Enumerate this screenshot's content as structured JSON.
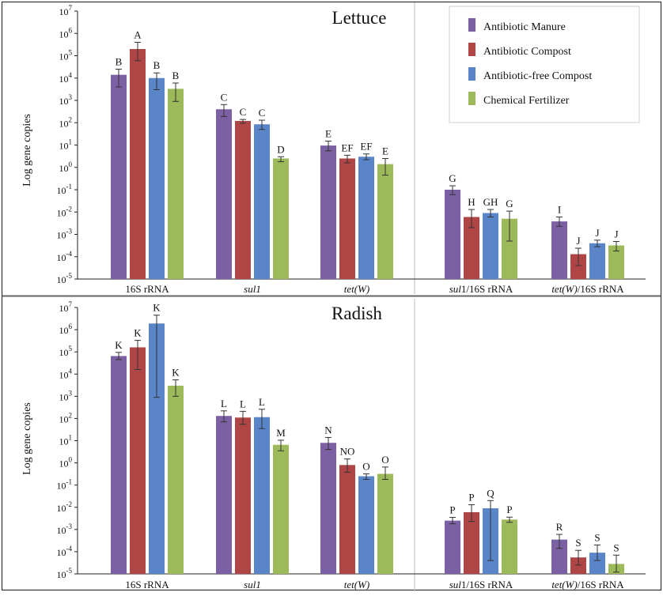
{
  "chart_data": {
    "type": "bar",
    "yscale": "log",
    "ylabel": "Log gene copies",
    "y_exponent_range": [
      -5,
      7
    ],
    "y_tick_base": "10",
    "legend": [
      {
        "name": "Antibiotic Manure",
        "color": "#7B61A3"
      },
      {
        "name": "Antibiotic Compost",
        "color": "#B04545"
      },
      {
        "name": "Antibiotic-free Compost",
        "color": "#5A86C9"
      },
      {
        "name": "Chemical Fertilizer",
        "color": "#9DBA5A"
      }
    ],
    "panels": [
      {
        "title": "Lettuce",
        "groups": [
          {
            "label": "16S rRNA",
            "label_parts": [
              {
                "text": "16S rRNA",
                "italic": false
              }
            ],
            "values": [
              14000,
              200000,
              10000,
              3300
            ],
            "err_low": [
              4000,
              60000,
              3000,
              900
            ],
            "err_high": [
              25000,
              400000,
              17000,
              6000
            ],
            "letters": [
              "B",
              "A",
              "B",
              "B"
            ]
          },
          {
            "label": "sul1",
            "label_parts": [
              {
                "text": "sul1",
                "italic": true
              }
            ],
            "values": [
              400,
              120,
              85,
              2.5
            ],
            "err_low": [
              190,
              95,
              50,
              1.8
            ],
            "err_high": [
              650,
              140,
              130,
              3.0
            ],
            "letters": [
              "C",
              "C",
              "C",
              "D"
            ]
          },
          {
            "label": "tet(W)",
            "label_parts": [
              {
                "text": "tet(W)",
                "italic": true
              }
            ],
            "values": [
              9.5,
              2.5,
              3.0,
              1.4
            ],
            "err_low": [
              5.5,
              1.6,
              2.2,
              0.45
            ],
            "err_high": [
              15,
              3.5,
              4.0,
              2.5
            ],
            "letters": [
              "E",
              "EF",
              "EF",
              "E"
            ]
          },
          {
            "label": "sul1/16S rRNA",
            "label_parts": [
              {
                "text": "sul",
                "italic": true
              },
              {
                "text": "1/16S rRNA",
                "italic": false
              }
            ],
            "values": [
              0.1,
              0.006,
              0.009,
              0.005
            ],
            "err_low": [
              0.06,
              0.002,
              0.006,
              0.0005
            ],
            "err_high": [
              0.15,
              0.013,
              0.013,
              0.011
            ],
            "letters": [
              "G",
              "H",
              "GH",
              "G"
            ]
          },
          {
            "label": "tet(W)/16S rRNA",
            "label_parts": [
              {
                "text": "tet(W)",
                "italic": true
              },
              {
                "text": "/16S rRNA",
                "italic": false
              }
            ],
            "values": [
              0.0038,
              0.00013,
              0.0004,
              0.00032
            ],
            "err_low": [
              0.0023,
              4e-05,
              0.00028,
              0.00018
            ],
            "err_high": [
              0.006,
              0.00024,
              0.00055,
              0.00048
            ],
            "letters": [
              "I",
              "J",
              "J",
              "J"
            ]
          }
        ]
      },
      {
        "title": "Radish",
        "groups": [
          {
            "label": "16S rRNA",
            "label_parts": [
              {
                "text": "16S rRNA",
                "italic": false
              }
            ],
            "values": [
              65000,
              160000,
              1900000,
              3000
            ],
            "err_low": [
              45000,
              16000,
              900,
              1000
            ],
            "err_high": [
              95000,
              330000,
              4500000,
              5500
            ],
            "letters": [
              "K",
              "K",
              "K",
              "K"
            ]
          },
          {
            "label": "sul1",
            "label_parts": [
              {
                "text": "sul1",
                "italic": true
              }
            ],
            "values": [
              130,
              110,
              115,
              6.5
            ],
            "err_low": [
              70,
              55,
              35,
              3.5
            ],
            "err_high": [
              220,
              210,
              260,
              10.5
            ],
            "letters": [
              "L",
              "L",
              "L",
              "M"
            ]
          },
          {
            "label": "tet(W)",
            "label_parts": [
              {
                "text": "tet(W)",
                "italic": true
              }
            ],
            "values": [
              8,
              0.8,
              0.25,
              0.32
            ],
            "err_low": [
              4,
              0.38,
              0.18,
              0.18
            ],
            "err_high": [
              14,
              1.5,
              0.32,
              0.65
            ],
            "letters": [
              "N",
              "NO",
              "O",
              "O"
            ]
          },
          {
            "label": "sul1/16S rRNA",
            "label_parts": [
              {
                "text": "sul",
                "italic": true
              },
              {
                "text": "1/16S rRNA",
                "italic": false
              }
            ],
            "values": [
              0.0025,
              0.006,
              0.009,
              0.0028
            ],
            "err_low": [
              0.0018,
              0.0023,
              4e-05,
              0.0021
            ],
            "err_high": [
              0.0035,
              0.013,
              0.02,
              0.0036
            ],
            "letters": [
              "P",
              "P",
              "Q",
              "P"
            ]
          },
          {
            "label": "tet(W)/16S rRNA",
            "label_parts": [
              {
                "text": "tet(W)",
                "italic": true
              },
              {
                "text": "/16S rRNA",
                "italic": false
              }
            ],
            "values": [
              0.00035,
              5.5e-05,
              9e-05,
              2.8e-05
            ],
            "err_low": [
              0.00014,
              2.5e-05,
              4e-05,
              1.2e-05
            ],
            "err_high": [
              0.0006,
              0.000115,
              0.0002,
              7e-05
            ],
            "letters": [
              "R",
              "S",
              "S",
              "S"
            ]
          }
        ]
      }
    ]
  }
}
